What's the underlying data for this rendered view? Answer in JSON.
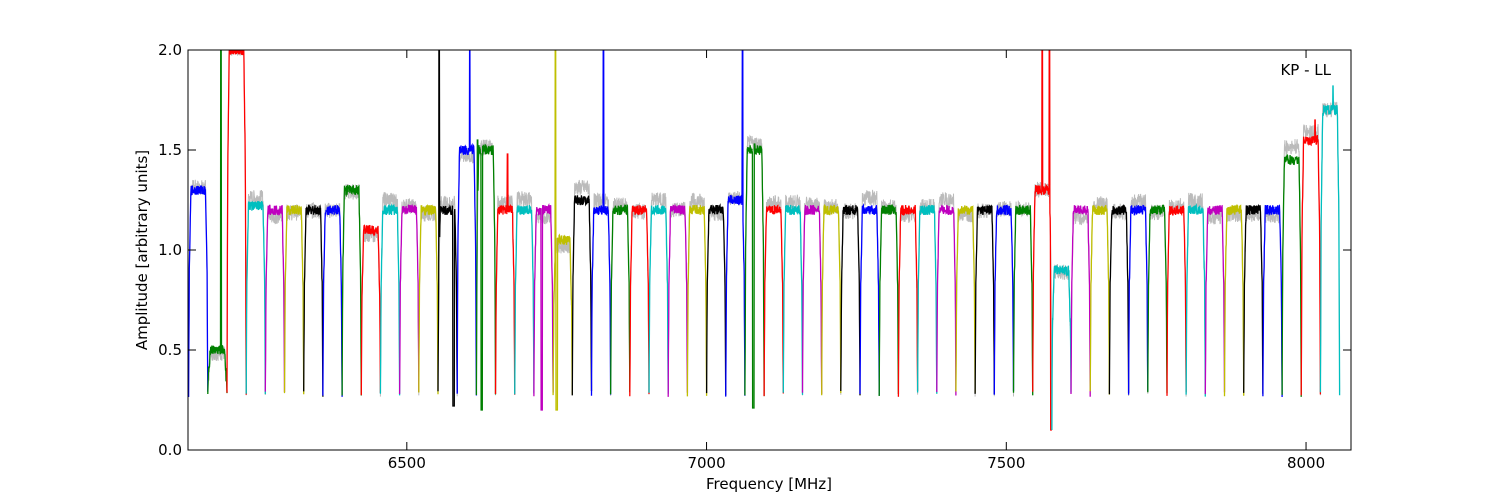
{
  "chart_data": {
    "type": "line",
    "title": "",
    "annotation": "KP - LL",
    "xlabel": "Frequency [MHz]",
    "ylabel": "Amplitude [arbitrary units]",
    "xlim": [
      6135,
      8075
    ],
    "ylim": [
      0.0,
      2.0
    ],
    "x_ticks": [
      6500,
      7000,
      7500,
      8000
    ],
    "x_tick_labels": [
      "6500",
      "7000",
      "7500",
      "8000"
    ],
    "y_ticks": [
      0.0,
      0.5,
      1.0,
      1.5,
      2.0
    ],
    "y_tick_labels": [
      "0.0",
      "0.5",
      "1.0",
      "1.5",
      "2.0"
    ],
    "grid": false,
    "legend": "none",
    "color_cycle": [
      "#0000ff",
      "#008000",
      "#ff0000",
      "#00bfbf",
      "#bf00bf",
      "#bfbf00",
      "#000000"
    ],
    "background_series_color": "#bbbbbb",
    "channel_width_mhz": 32,
    "channel_starts_mhz": [
      6136,
      6168,
      6200,
      6232,
      6264,
      6296,
      6328,
      6360,
      6392,
      6424,
      6456,
      6488,
      6520,
      6552,
      6584,
      6616,
      6648,
      6680,
      6712,
      6744,
      6776,
      6808,
      6840,
      6872,
      6904,
      6936,
      6968,
      7000,
      7032,
      7064,
      7096,
      7128,
      7160,
      7192,
      7224,
      7256,
      7288,
      7320,
      7352,
      7384,
      7416,
      7448,
      7480,
      7512,
      7544,
      7576,
      7608,
      7640,
      7672,
      7704,
      7736,
      7768,
      7800,
      7832,
      7864,
      7896,
      7928,
      7960,
      7992,
      8024
    ],
    "channel_levels": [
      1.3,
      0.5,
      2.0,
      1.22,
      1.2,
      1.2,
      1.2,
      1.2,
      1.3,
      1.1,
      1.2,
      1.2,
      1.2,
      1.2,
      1.5,
      1.5,
      1.2,
      1.2,
      1.2,
      1.05,
      1.25,
      1.2,
      1.2,
      1.2,
      1.2,
      1.2,
      1.2,
      1.2,
      1.25,
      1.5,
      1.2,
      1.2,
      1.2,
      1.2,
      1.2,
      1.2,
      1.2,
      1.2,
      1.2,
      1.2,
      1.2,
      1.2,
      1.2,
      1.2,
      1.3,
      0.9,
      1.2,
      1.2,
      1.2,
      1.2,
      1.2,
      1.2,
      1.2,
      1.2,
      1.2,
      1.2,
      1.2,
      1.45,
      1.55,
      1.7
    ],
    "spikes": [
      {
        "x": 6190,
        "y": 2.0
      },
      {
        "x": 6215,
        "y": 2.0
      },
      {
        "x": 6554,
        "y": 2.0
      },
      {
        "x": 6578,
        "y": 1.5
      },
      {
        "x": 6605,
        "y": 2.0
      },
      {
        "x": 6618,
        "y": 1.55
      },
      {
        "x": 6668,
        "y": 1.48
      },
      {
        "x": 6748,
        "y": 2.0
      },
      {
        "x": 6828,
        "y": 2.0
      },
      {
        "x": 7060,
        "y": 2.0
      },
      {
        "x": 7080,
        "y": 1.53
      },
      {
        "x": 7560,
        "y": 2.0
      },
      {
        "x": 7572,
        "y": 2.0
      },
      {
        "x": 8015,
        "y": 1.65
      },
      {
        "x": 8045,
        "y": 1.82
      }
    ],
    "dips": [
      {
        "x": 6578,
        "y": 0.22
      },
      {
        "x": 6625,
        "y": 0.2
      },
      {
        "x": 6725,
        "y": 0.2
      },
      {
        "x": 6750,
        "y": 0.2
      },
      {
        "x": 7078,
        "y": 0.21
      },
      {
        "x": 7575,
        "y": 0.1
      }
    ]
  }
}
